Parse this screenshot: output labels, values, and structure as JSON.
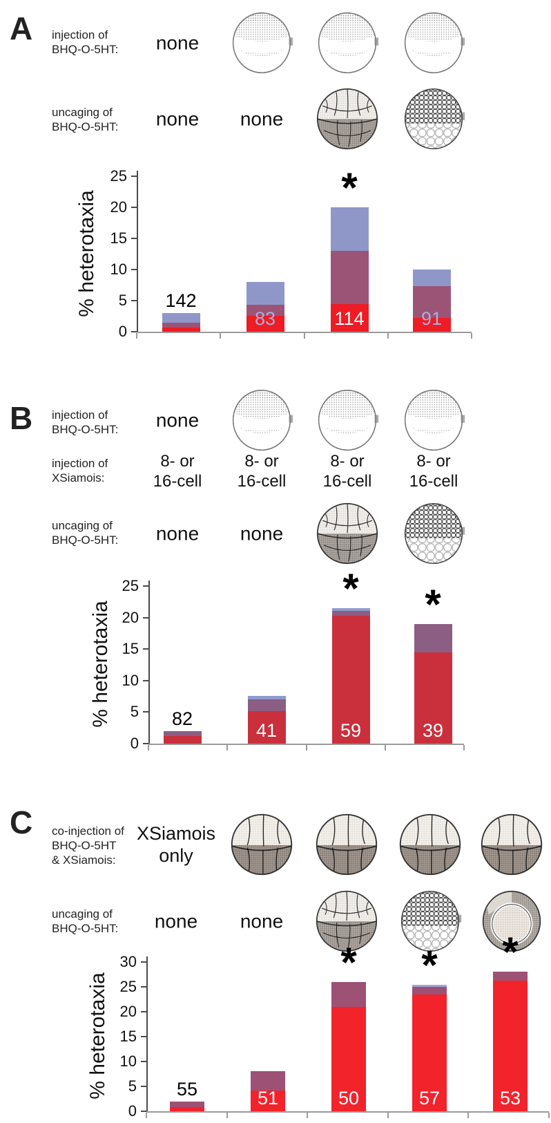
{
  "figure": {
    "type": "scientific-figure",
    "description_visible_text_only": true
  },
  "panels": [
    {
      "letter": "A",
      "rows": [
        {
          "label_lines": "injection of\nBHQ-O-5HT:",
          "cells": [
            {
              "type": "text",
              "value": "none"
            },
            {
              "type": "embryo",
              "value": "egg"
            },
            {
              "type": "embryo",
              "value": "egg"
            },
            {
              "type": "embryo",
              "value": "egg"
            }
          ]
        },
        {
          "label_lines": "uncaging of\nBHQ-O-5HT:",
          "cells": [
            {
              "type": "text",
              "value": "none"
            },
            {
              "type": "text",
              "value": "none"
            },
            {
              "type": "embryo",
              "value": "cleavage"
            },
            {
              "type": "embryo",
              "value": "blastula"
            }
          ]
        }
      ]
    },
    {
      "letter": "B",
      "rows": [
        {
          "label_lines": "injection of\nBHQ-O-5HT:",
          "cells": [
            {
              "type": "text",
              "value": "none"
            },
            {
              "type": "embryo",
              "value": "egg"
            },
            {
              "type": "embryo",
              "value": "egg"
            },
            {
              "type": "embryo",
              "value": "egg"
            }
          ]
        },
        {
          "label_lines": "injection of\nXSiamois:",
          "cells": [
            {
              "type": "text",
              "value": "8- or\n16-cell"
            },
            {
              "type": "text",
              "value": "8- or\n16-cell"
            },
            {
              "type": "text",
              "value": "8- or\n16-cell"
            },
            {
              "type": "text",
              "value": "8- or\n16-cell"
            }
          ]
        },
        {
          "label_lines": "uncaging of\nBHQ-O-5HT:",
          "cells": [
            {
              "type": "text",
              "value": "none"
            },
            {
              "type": "text",
              "value": "none"
            },
            {
              "type": "embryo",
              "value": "cleavage"
            },
            {
              "type": "embryo",
              "value": "blastula"
            }
          ]
        }
      ]
    },
    {
      "letter": "C",
      "rows": [
        {
          "label_lines": "co-injection of\nBHQ-O-5HT\n& XSiamois:",
          "cells": [
            {
              "type": "text",
              "value": "XSiamois\nonly"
            },
            {
              "type": "embryo",
              "value": "eightcell"
            },
            {
              "type": "embryo",
              "value": "eightcell"
            },
            {
              "type": "embryo",
              "value": "eightcell"
            },
            {
              "type": "embryo",
              "value": "eightcell"
            }
          ]
        },
        {
          "label_lines": "uncaging of\nBHQ-O-5HT:",
          "cells": [
            {
              "type": "text",
              "value": "none"
            },
            {
              "type": "text",
              "value": "none"
            },
            {
              "type": "embryo",
              "value": "cleavage"
            },
            {
              "type": "embryo",
              "value": "blastula"
            },
            {
              "type": "embryo",
              "value": "gastrula"
            }
          ]
        }
      ]
    }
  ],
  "chart_data": [
    {
      "type": "bar",
      "stacked": true,
      "panel": "A",
      "title": "",
      "xlabel": "",
      "ylabel": "% heterotaxia",
      "ylim": [
        0,
        25
      ],
      "ytick_step": 5,
      "grid": false,
      "legend": "none",
      "categories": [
        "none | none",
        "egg | none",
        "egg | cleavage",
        "egg | blastula"
      ],
      "series": [
        {
          "name": "red",
          "color": "#ee1c25",
          "values": [
            0.7,
            2.6,
            4.4,
            2.2
          ]
        },
        {
          "name": "purple",
          "color": "#9c5476",
          "values": [
            0.7,
            1.7,
            8.6,
            5.1
          ]
        },
        {
          "name": "blue",
          "color": "#8f97c9",
          "values": [
            1.6,
            3.7,
            7.0,
            2.7
          ]
        }
      ],
      "totals": [
        3.0,
        8.0,
        20.0,
        10.0
      ],
      "n_labels": [
        {
          "value": "142",
          "position": "above",
          "color": "#000000"
        },
        {
          "value": "83",
          "position": "inside",
          "color": "#a9aedd"
        },
        {
          "value": "114",
          "position": "inside",
          "color": "#ffffff"
        },
        {
          "value": "91",
          "position": "inside",
          "color": "#a9aedd"
        }
      ],
      "significance_asterisk": [
        false,
        false,
        true,
        false
      ]
    },
    {
      "type": "bar",
      "stacked": true,
      "panel": "B",
      "title": "",
      "xlabel": "",
      "ylabel": "% heterotaxia",
      "ylim": [
        0,
        25
      ],
      "ytick_step": 5,
      "grid": false,
      "legend": "none",
      "categories": [
        "none | 8-16cell | none",
        "egg | 8-16cell | none",
        "egg | 8-16cell | cleavage",
        "egg | 8-16cell | blastula"
      ],
      "series": [
        {
          "name": "red",
          "color": "#c9303c",
          "values": [
            1.2,
            5.2,
            20.3,
            14.5
          ]
        },
        {
          "name": "purple",
          "color": "#8c5e83",
          "values": [
            0.8,
            1.8,
            0.7,
            4.5
          ]
        },
        {
          "name": "blue",
          "color": "#8f9bce",
          "values": [
            0,
            0.6,
            0.5,
            0
          ]
        }
      ],
      "totals": [
        2.0,
        7.6,
        21.5,
        19.0
      ],
      "n_labels": [
        {
          "value": "82",
          "position": "above",
          "color": "#000000"
        },
        {
          "value": "41",
          "position": "inside",
          "color": "#ffffff"
        },
        {
          "value": "59",
          "position": "inside",
          "color": "#ffffff"
        },
        {
          "value": "39",
          "position": "inside",
          "color": "#ffffff"
        }
      ],
      "significance_asterisk": [
        false,
        false,
        true,
        true
      ]
    },
    {
      "type": "bar",
      "stacked": true,
      "panel": "C",
      "title": "",
      "xlabel": "",
      "ylabel": "% heterotaxia",
      "ylim": [
        0,
        30
      ],
      "ytick_step": 5,
      "grid": false,
      "legend": "none",
      "categories": [
        "XSiamois only | none",
        "eightcell | none",
        "eightcell | cleavage",
        "eightcell | blastula",
        "eightcell | gastrula"
      ],
      "series": [
        {
          "name": "red",
          "color": "#f2232b",
          "values": [
            0.8,
            4.2,
            21.0,
            23.5,
            26.3
          ]
        },
        {
          "name": "purple",
          "color": "#9d5174",
          "values": [
            1.2,
            3.8,
            5.0,
            1.5,
            1.7
          ]
        },
        {
          "name": "blue",
          "color": "#9fa6d5",
          "values": [
            0,
            0,
            0,
            0.4,
            0
          ]
        }
      ],
      "totals": [
        2.0,
        8.0,
        26.0,
        25.4,
        28.0
      ],
      "n_labels": [
        {
          "value": "55",
          "position": "above",
          "color": "#000000"
        },
        {
          "value": "51",
          "position": "inside",
          "color": "#ffffff"
        },
        {
          "value": "50",
          "position": "inside",
          "color": "#ffffff"
        },
        {
          "value": "57",
          "position": "inside",
          "color": "#ffffff"
        },
        {
          "value": "53",
          "position": "inside",
          "color": "#ffffff"
        }
      ],
      "significance_asterisk": [
        false,
        false,
        true,
        true,
        true
      ]
    }
  ]
}
